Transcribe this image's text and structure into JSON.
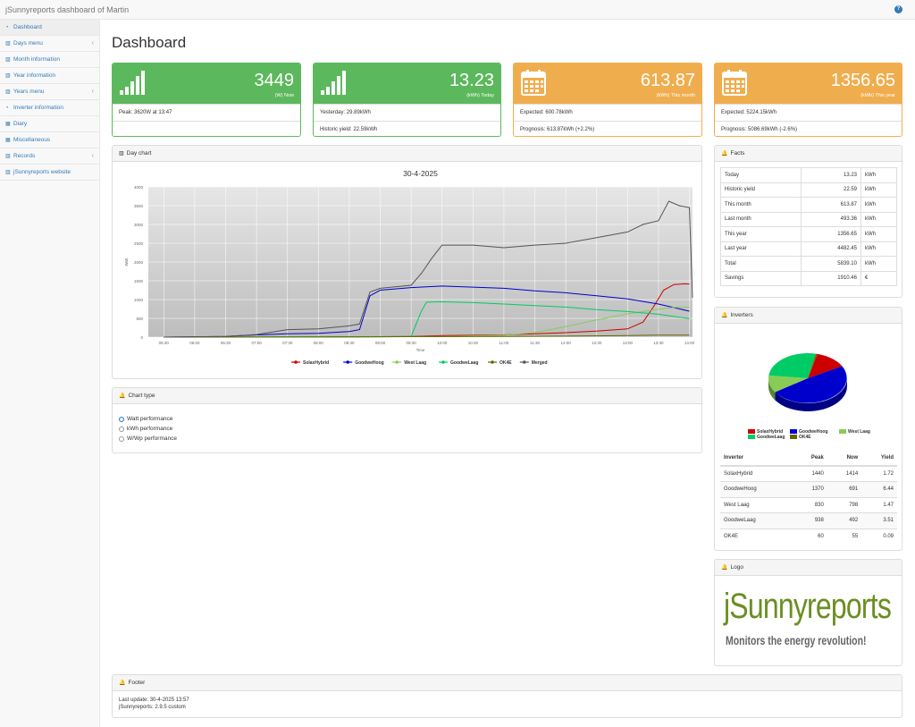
{
  "app": {
    "title": "jSunnyreports dashboard of Martin",
    "help": "?"
  },
  "sidebar": {
    "items": [
      {
        "label": "Dashboard",
        "icon": "tachometer-icon",
        "active": true,
        "arrow": false
      },
      {
        "label": "Days menu",
        "icon": "bar-chart-icon",
        "arrow": true
      },
      {
        "label": "Month information",
        "icon": "bar-chart-icon",
        "arrow": false
      },
      {
        "label": "Year information",
        "icon": "bar-chart-icon",
        "arrow": false
      },
      {
        "label": "Years menu",
        "icon": "bar-chart-icon",
        "arrow": true
      },
      {
        "label": "Inverter information",
        "icon": "tachometer-icon",
        "arrow": false
      },
      {
        "label": "Diary",
        "icon": "table-icon",
        "arrow": false
      },
      {
        "label": "Miscellaneous",
        "icon": "table-icon",
        "arrow": false
      },
      {
        "label": "Records",
        "icon": "bar-chart-icon",
        "arrow": true
      },
      {
        "label": "jSunnyreports website",
        "icon": "bar-chart-icon",
        "arrow": false
      }
    ]
  },
  "page": {
    "title": "Dashboard"
  },
  "kpis": [
    {
      "value": "3449",
      "sub": "(W) Now",
      "rows": [
        "Peak: 3620W at 13:47",
        ""
      ],
      "color": "green",
      "icon": "signal-icon"
    },
    {
      "value": "13.23",
      "sub": "(kWh) Today",
      "rows": [
        "Yesterday: 29.89kWh",
        "Historic yield: 22.59kWh"
      ],
      "color": "green",
      "icon": "signal-icon"
    },
    {
      "value": "613.87",
      "sub": "(kWh) This month",
      "rows": [
        "Expected: 600.78kWh",
        "Prognosis: 613.87kWh (+2.2%)"
      ],
      "color": "orange",
      "icon": "calendar-icon"
    },
    {
      "value": "1356.65",
      "sub": "(kWh) This year",
      "rows": [
        "Expected: 5224.15kWh",
        "Prognosis: 5086.69kWh (-2.6%)"
      ],
      "color": "orange",
      "icon": "calendar-icon"
    }
  ],
  "day_chart": {
    "panel_title": "Day chart"
  },
  "chart_type": {
    "panel_title": "Chart type",
    "options": [
      {
        "label": "Watt performance",
        "checked": true
      },
      {
        "label": "kWh performance",
        "checked": false
      },
      {
        "label": "W/Wp performance",
        "checked": false
      }
    ]
  },
  "facts": {
    "panel_title": "Facts",
    "rows": [
      {
        "label": "Today",
        "value": "13.23",
        "unit": "kWh"
      },
      {
        "label": "Historic yield",
        "value": "22.59",
        "unit": "kWh"
      },
      {
        "label": "This month",
        "value": "613.87",
        "unit": "kWh"
      },
      {
        "label": "Last month",
        "value": "493.36",
        "unit": "kWh"
      },
      {
        "label": "This year",
        "value": "1356.65",
        "unit": "kWh"
      },
      {
        "label": "Last year",
        "value": "4482.45",
        "unit": "kWh"
      },
      {
        "label": "Total",
        "value": "5839.10",
        "unit": "kWh"
      },
      {
        "label": "Savings",
        "value": "1910.46",
        "unit": "€"
      }
    ]
  },
  "inverters": {
    "panel_title": "Inverters",
    "headers": [
      "Inverter",
      "Peak",
      "Now",
      "Yield"
    ],
    "rows": [
      [
        "SolaxHybrid",
        "1440",
        "1414",
        "1.72"
      ],
      [
        "GoodweHoog",
        "1370",
        "691",
        "6.44"
      ],
      [
        "West Laag",
        "830",
        "798",
        "1.47"
      ],
      [
        "GoodweLaag",
        "938",
        "492",
        "3.51"
      ],
      [
        "OK4E",
        "60",
        "55",
        "0.09"
      ]
    ]
  },
  "logo": {
    "panel_title": "Logo",
    "name": "jSunnyreports",
    "tagline": "Monitors the energy revolution!"
  },
  "footer": {
    "panel_title": "Footer",
    "last_update": "Last update: 30-4-2025 13:57",
    "version": "jSunnyreports: 2.9.5 custom"
  },
  "colors": {
    "green": "#5cb85c",
    "orange": "#f0ad4e",
    "link": "#337ab7",
    "logo_green": "#6b8e23"
  },
  "chart_data": [
    {
      "type": "line",
      "title": "30-4-2025",
      "xlabel": "Time",
      "ylabel": "Watt",
      "xlim": [
        "05:15",
        "14:03"
      ],
      "ylim": [
        0,
        4000
      ],
      "yticks": [
        0,
        500,
        1000,
        1500,
        2000,
        2500,
        3000,
        3500,
        4000
      ],
      "xticks": [
        "05:30",
        "06:00",
        "06:30",
        "07:00",
        "07:30",
        "08:00",
        "08:30",
        "09:00",
        "09:30",
        "10:00",
        "10:30",
        "11:00",
        "11:30",
        "12:00",
        "12:30",
        "13:00",
        "13:30",
        "14:00"
      ],
      "grid": true,
      "legend": "bottom",
      "series": [
        {
          "name": "SolaxHybrid",
          "color": "#cc0000",
          "points": [
            [
              "05:30",
              0
            ],
            [
              "08:00",
              0
            ],
            [
              "09:30",
              20
            ],
            [
              "10:00",
              40
            ],
            [
              "11:00",
              60
            ],
            [
              "12:00",
              120
            ],
            [
              "12:30",
              160
            ],
            [
              "13:00",
              220
            ],
            [
              "13:15",
              400
            ],
            [
              "13:25",
              800
            ],
            [
              "13:35",
              1250
            ],
            [
              "13:45",
              1400
            ],
            [
              "13:55",
              1420
            ],
            [
              "14:00",
              1414
            ]
          ]
        },
        {
          "name": "GoodweHoog",
          "color": "#0000cc",
          "points": [
            [
              "05:30",
              0
            ],
            [
              "06:30",
              20
            ],
            [
              "07:00",
              60
            ],
            [
              "07:30",
              90
            ],
            [
              "08:00",
              100
            ],
            [
              "08:30",
              150
            ],
            [
              "08:40",
              200
            ],
            [
              "08:50",
              1100
            ],
            [
              "09:00",
              1250
            ],
            [
              "09:30",
              1320
            ],
            [
              "10:00",
              1360
            ],
            [
              "10:30",
              1330
            ],
            [
              "11:00",
              1300
            ],
            [
              "11:30",
              1230
            ],
            [
              "12:00",
              1180
            ],
            [
              "12:30",
              1100
            ],
            [
              "13:00",
              1020
            ],
            [
              "13:30",
              880
            ],
            [
              "14:00",
              691
            ]
          ]
        },
        {
          "name": "West Laag",
          "color": "#88cc55",
          "points": [
            [
              "05:30",
              0
            ],
            [
              "08:00",
              0
            ],
            [
              "09:00",
              10
            ],
            [
              "10:00",
              20
            ],
            [
              "11:00",
              50
            ],
            [
              "11:30",
              120
            ],
            [
              "12:00",
              280
            ],
            [
              "12:30",
              460
            ],
            [
              "13:00",
              620
            ],
            [
              "13:30",
              740
            ],
            [
              "13:45",
              790
            ],
            [
              "14:00",
              798
            ]
          ]
        },
        {
          "name": "GoodweLaag",
          "color": "#00cc66",
          "points": [
            [
              "05:30",
              0
            ],
            [
              "09:00",
              10
            ],
            [
              "09:30",
              20
            ],
            [
              "09:40",
              700
            ],
            [
              "09:45",
              930
            ],
            [
              "10:00",
              940
            ],
            [
              "10:30",
              920
            ],
            [
              "11:00",
              880
            ],
            [
              "11:30",
              840
            ],
            [
              "12:00",
              800
            ],
            [
              "12:30",
              730
            ],
            [
              "13:00",
              680
            ],
            [
              "13:30",
              610
            ],
            [
              "14:00",
              492
            ]
          ]
        },
        {
          "name": "OK4E",
          "color": "#666600",
          "points": [
            [
              "05:30",
              0
            ],
            [
              "08:00",
              5
            ],
            [
              "09:00",
              10
            ],
            [
              "10:00",
              15
            ],
            [
              "11:00",
              20
            ],
            [
              "12:00",
              25
            ],
            [
              "13:00",
              40
            ],
            [
              "13:30",
              55
            ],
            [
              "14:00",
              55
            ]
          ]
        },
        {
          "name": "Merged",
          "color": "#555555",
          "points": [
            [
              "05:30",
              0
            ],
            [
              "06:30",
              20
            ],
            [
              "07:00",
              70
            ],
            [
              "07:30",
              200
            ],
            [
              "08:00",
              220
            ],
            [
              "08:30",
              300
            ],
            [
              "08:40",
              350
            ],
            [
              "08:50",
              1200
            ],
            [
              "09:00",
              1300
            ],
            [
              "09:30",
              1380
            ],
            [
              "09:40",
              1700
            ],
            [
              "09:50",
              2100
            ],
            [
              "10:00",
              2450
            ],
            [
              "10:30",
              2450
            ],
            [
              "11:00",
              2380
            ],
            [
              "11:30",
              2450
            ],
            [
              "12:00",
              2500
            ],
            [
              "12:30",
              2650
            ],
            [
              "13:00",
              2800
            ],
            [
              "13:15",
              3000
            ],
            [
              "13:30",
              3100
            ],
            [
              "13:40",
              3620
            ],
            [
              "13:50",
              3500
            ],
            [
              "14:00",
              3449
            ],
            [
              "14:03",
              1050
            ]
          ]
        }
      ]
    },
    {
      "type": "pie",
      "labels": [
        "SolaxHybrid",
        "GoodweHoog",
        "West Laag",
        "GoodweLaag",
        "OK4E"
      ],
      "values": [
        1.72,
        6.44,
        1.47,
        3.51,
        0.09
      ],
      "colors": [
        "#cc0000",
        "#0000cc",
        "#88cc55",
        "#00cc66",
        "#666600"
      ],
      "legend": "bottom"
    }
  ]
}
